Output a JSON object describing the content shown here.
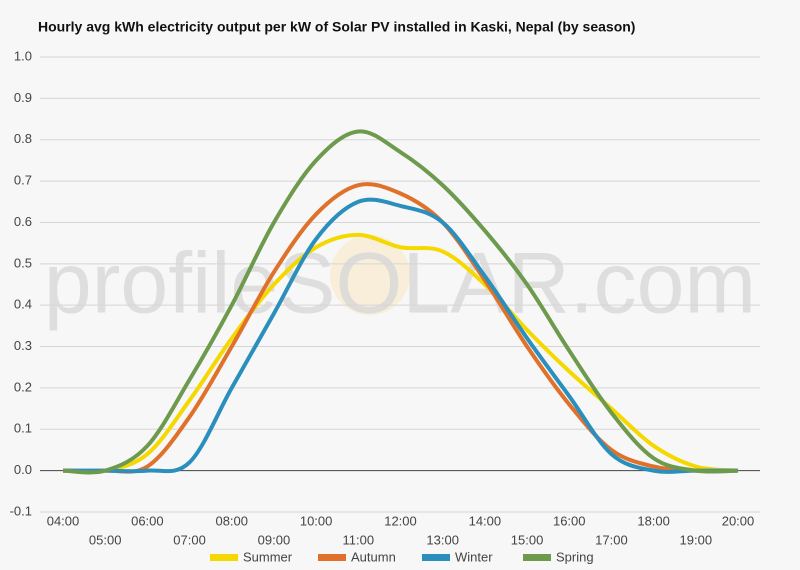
{
  "chart_data": {
    "type": "line",
    "title": "Hourly avg kWh electricity output per kW of Solar PV installed in Kaski, Nepal (by season)",
    "watermark": "profileSOLAR.com",
    "categories": [
      "04:00",
      "05:00",
      "06:00",
      "07:00",
      "08:00",
      "09:00",
      "10:00",
      "11:00",
      "12:00",
      "13:00",
      "14:00",
      "15:00",
      "16:00",
      "17:00",
      "18:00",
      "19:00",
      "20:00"
    ],
    "series": [
      {
        "name": "Summer",
        "color": "#f5d800",
        "values": [
          0,
          0,
          0.04,
          0.17,
          0.32,
          0.45,
          0.54,
          0.57,
          0.54,
          0.53,
          0.45,
          0.34,
          0.24,
          0.15,
          0.06,
          0.01,
          0
        ]
      },
      {
        "name": "Autumn",
        "color": "#e0712a",
        "values": [
          0,
          0,
          0.01,
          0.13,
          0.3,
          0.48,
          0.62,
          0.69,
          0.67,
          0.6,
          0.46,
          0.3,
          0.16,
          0.05,
          0.01,
          0,
          0
        ]
      },
      {
        "name": "Winter",
        "color": "#2a8fbd",
        "values": [
          0,
          0,
          0,
          0.02,
          0.2,
          0.38,
          0.56,
          0.65,
          0.64,
          0.6,
          0.47,
          0.32,
          0.18,
          0.04,
          0,
          0,
          0
        ]
      },
      {
        "name": "Spring",
        "color": "#6d9a4c",
        "values": [
          0,
          0,
          0.06,
          0.22,
          0.4,
          0.6,
          0.75,
          0.82,
          0.77,
          0.69,
          0.58,
          0.45,
          0.29,
          0.14,
          0.03,
          0,
          0
        ]
      }
    ],
    "ylim": [
      -0.1,
      1
    ],
    "yticks": [
      -0.1,
      {
        "value": 0,
        "label": "0.0"
      },
      0.1,
      0.2,
      0.3,
      0.4,
      0.5,
      0.6,
      0.7,
      0.8,
      0.9,
      {
        "value": 1,
        "label": "1.0"
      }
    ],
    "grid": true,
    "legend": "bottom"
  }
}
